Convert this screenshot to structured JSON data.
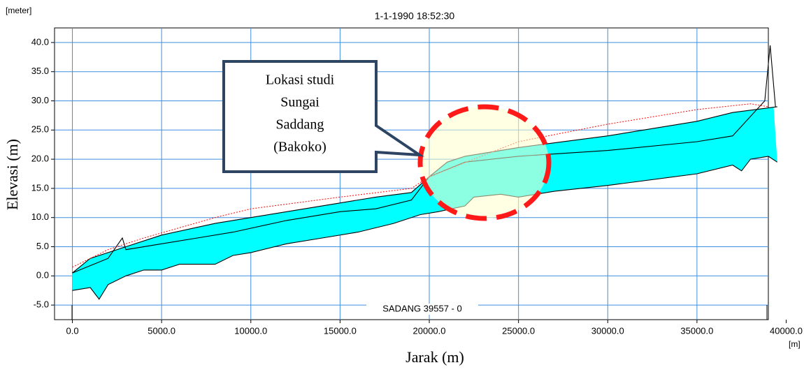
{
  "chart_data": {
    "type": "area",
    "title": "1-1-1990 18:52:30",
    "y_unit": "[meter]",
    "x_unit": "[m]",
    "y_label": "Elevasi (m)",
    "x_label": "Jarak (m)",
    "branch_label": "SADANG  39557 - 0",
    "callout": [
      "Lokasi studi",
      "Sungai",
      "Saddang",
      "(Bakoko)"
    ],
    "xlim": [
      -1000,
      39000
    ],
    "ylim": [
      -7.5,
      42.5
    ],
    "xticks": [
      {
        "value": 0,
        "label": "0.0"
      },
      {
        "value": 5000,
        "label": "5000.0"
      },
      {
        "value": 10000,
        "label": "10000.0"
      },
      {
        "value": 15000,
        "label": "15000.0"
      },
      {
        "value": 20000,
        "label": "20000.0"
      },
      {
        "value": 25000,
        "label": "25000.0"
      },
      {
        "value": 30000,
        "label": "30000.0"
      },
      {
        "value": 35000,
        "label": "35000.0"
      },
      {
        "value": 40000,
        "label": "40000.0"
      }
    ],
    "yticks": [
      {
        "value": -5,
        "label": "-5.0"
      },
      {
        "value": 0,
        "label": "0.0"
      },
      {
        "value": 5,
        "label": "5.0"
      },
      {
        "value": 10,
        "label": "10.0"
      },
      {
        "value": 15,
        "label": "15.0"
      },
      {
        "value": 20,
        "label": "20.0"
      },
      {
        "value": 25,
        "label": "25.0"
      },
      {
        "value": 30,
        "label": "30.0"
      },
      {
        "value": 35,
        "label": "35.0"
      },
      {
        "value": 40,
        "label": "40.0"
      }
    ],
    "grid": true,
    "fill_color": "#00ffff",
    "series": [
      {
        "role": "top",
        "color": "#000000",
        "x": [
          0,
          1000,
          3000,
          5000,
          8000,
          10000,
          13000,
          15000,
          17000,
          19000,
          20000,
          21000,
          22000,
          25000,
          30000,
          35000,
          37000,
          39500
        ],
        "values": [
          0.5,
          3,
          5,
          7,
          9,
          10,
          11.5,
          12.5,
          13.5,
          14.3,
          17,
          19.5,
          20.5,
          22,
          24,
          26.5,
          28,
          29
        ]
      },
      {
        "role": "bed",
        "color": "#000000",
        "x": [
          0,
          1000,
          1500,
          2000,
          3000,
          4000,
          5000,
          6000,
          7000,
          8000,
          9000,
          10000,
          12000,
          14000,
          16000,
          18000,
          19500,
          20500,
          22000,
          22500,
          24000,
          25000,
          27000,
          30000,
          35000,
          37000,
          37500,
          38000,
          39000,
          39500
        ],
        "values": [
          -2.5,
          -2,
          -4,
          -1.5,
          0,
          1,
          1,
          2,
          2,
          2,
          3.5,
          4,
          5.5,
          6.5,
          7.5,
          9,
          10.5,
          11,
          12,
          13.5,
          14,
          13.5,
          14.5,
          15.5,
          17.5,
          19,
          18,
          20,
          20.5,
          19.5
        ]
      },
      {
        "role": "water",
        "color": "#000000",
        "x": [
          0,
          2000,
          2800,
          3000,
          5000,
          7000,
          9000,
          12000,
          15000,
          17000,
          19000,
          20000,
          22000,
          23500,
          25000,
          30000,
          35000,
          37000,
          38500,
          38800,
          39100,
          39400
        ],
        "values": [
          0.5,
          3,
          6.5,
          4.5,
          5.5,
          6.5,
          7.5,
          9.5,
          11,
          11.5,
          13,
          17,
          19.5,
          20,
          20.5,
          21.5,
          23,
          24,
          29,
          30,
          39.5,
          29
        ]
      },
      {
        "role": "bank",
        "color": "#ff0000",
        "dash": true,
        "x": [
          0,
          2000,
          4000,
          8000,
          10000,
          15000,
          19000,
          20000,
          25000,
          30000,
          35000,
          38000,
          39000
        ],
        "values": [
          1.5,
          4.5,
          6.5,
          10,
          11.5,
          13.5,
          15,
          17,
          23,
          26,
          28.5,
          29.5,
          29
        ]
      }
    ]
  }
}
